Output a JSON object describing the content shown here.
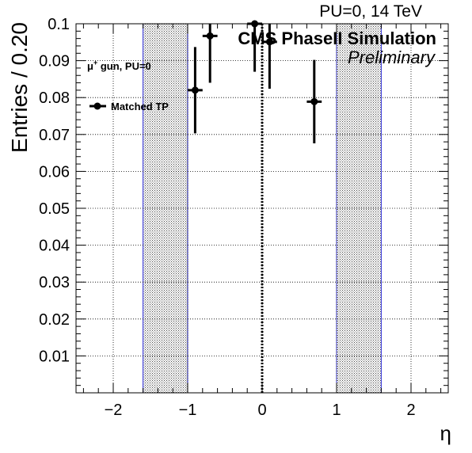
{
  "chart_data": {
    "type": "scatter",
    "title": "",
    "xlabel": "η",
    "ylabel": "Entries / 0.20",
    "xlim": [
      -2.5,
      2.5
    ],
    "ylim": [
      0.0,
      0.1
    ],
    "xticks": [
      -2,
      -1,
      0,
      1,
      2
    ],
    "xtick_labels": [
      "−2",
      "−1",
      "0",
      "1",
      "2"
    ],
    "yticks": [
      0.01,
      0.02,
      0.03,
      0.04,
      0.05,
      0.06,
      0.07,
      0.08,
      0.09,
      0.1
    ],
    "ytick_labels": [
      "0.01",
      "0.02",
      "0.03",
      "0.04",
      "0.05",
      "0.06",
      "0.07",
      "0.08",
      "0.09",
      "0.1"
    ],
    "grid": true,
    "series": [
      {
        "name": "Matched TP",
        "color": "#000000",
        "points": [
          {
            "x": -0.9,
            "y": 0.082,
            "xerr": 0.1,
            "yerr_low": 0.0117,
            "yerr_high": 0.0117
          },
          {
            "x": -0.7,
            "y": 0.0967,
            "xerr": 0.1,
            "yerr_low": 0.0127,
            "yerr_high": 0.0127
          },
          {
            "x": -0.1,
            "y": 0.1,
            "xerr": 0.1,
            "yerr_low": 0.013,
            "yerr_high": 0.013
          },
          {
            "x": 0.1,
            "y": 0.0951,
            "xerr": 0.1,
            "yerr_low": 0.0127,
            "yerr_high": 0.0127
          },
          {
            "x": 0.7,
            "y": 0.0789,
            "xerr": 0.1,
            "yerr_low": 0.0113,
            "yerr_high": 0.0113
          }
        ]
      }
    ],
    "shaded_bands": [
      {
        "x_range": [
          -1.6,
          -1.0
        ],
        "edge_color": "#2b2bd9",
        "fill": "hatched"
      },
      {
        "x_range": [
          1.0,
          1.6
        ],
        "edge_color": "#2b2bd9",
        "fill": "hatched"
      }
    ],
    "vertical_line": {
      "x": 0,
      "style": "dotted",
      "color": "#000000"
    }
  },
  "labels": {
    "top_right": "PU=0, 14 TeV",
    "cms": "CMS PhaseII Simulation",
    "preliminary": "Preliminary",
    "sample_prefix": "μ",
    "sample_sup": "+",
    "sample_suffix": " gun, PU=0",
    "legend": "Matched TP"
  }
}
